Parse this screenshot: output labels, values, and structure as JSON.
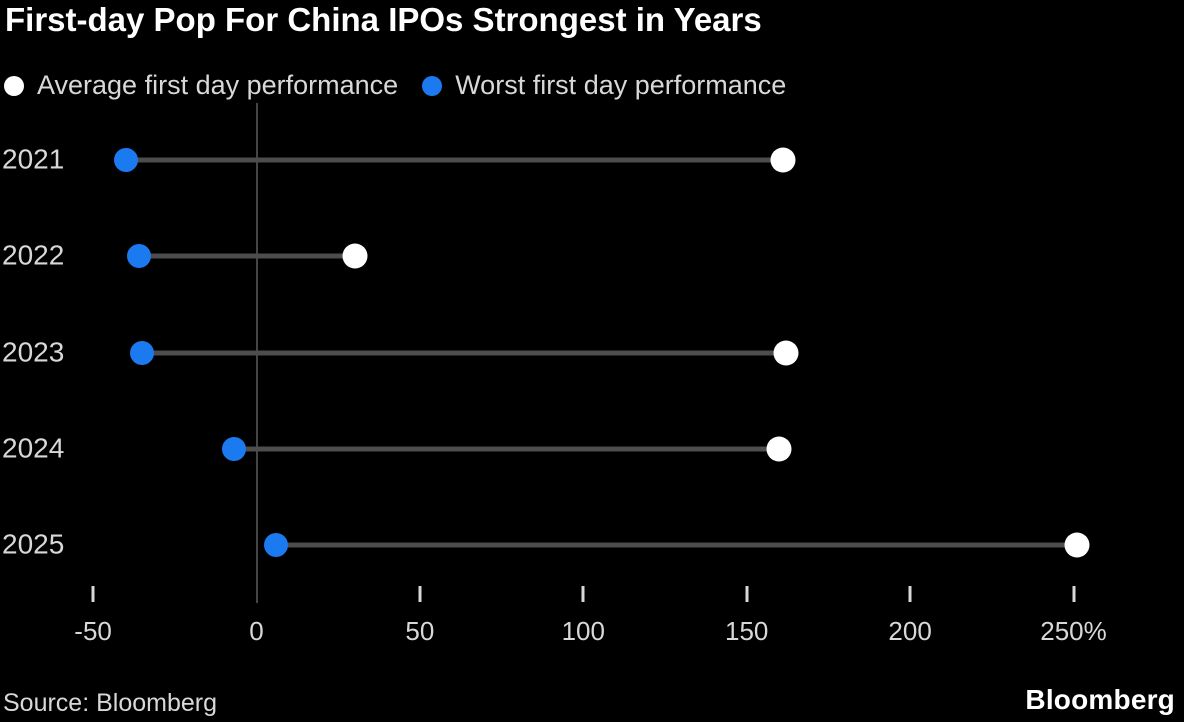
{
  "title": "First-day Pop For China IPOs Strongest in Years",
  "legend": {
    "items": [
      {
        "label": "Average first day performance",
        "color": "#ffffff"
      },
      {
        "label": "Worst first day performance",
        "color": "#1b7af0"
      }
    ]
  },
  "footer": {
    "source": "Source: Bloomberg",
    "logo": "Bloomberg"
  },
  "colors": {
    "background": "#000000",
    "title_text": "#ffffff",
    "text": "#d8d8d8",
    "avg_dot": "#ffffff",
    "worst_dot": "#1b7af0",
    "connector": "#4d4d4d",
    "gridline": "#454545",
    "tick": "#d8d8d8"
  },
  "chart_data": {
    "type": "scatter",
    "subtype": "dumbbell",
    "orientation": "horizontal",
    "title": "First-day Pop For China IPOs Strongest in Years",
    "categories": [
      "2021",
      "2022",
      "2023",
      "2024",
      "2025"
    ],
    "series": [
      {
        "name": "Average first day performance",
        "color": "#ffffff",
        "values": [
          161,
          30,
          162,
          160,
          251
        ]
      },
      {
        "name": "Worst first day performance",
        "color": "#1b7af0",
        "values": [
          -40,
          -36,
          -35,
          -7,
          6
        ]
      }
    ],
    "unit": "%",
    "xlabel": "",
    "ylabel": "",
    "x_ticks": [
      -50,
      0,
      50,
      100,
      150,
      200,
      250
    ],
    "x_tick_labels": [
      "-50",
      "0",
      "50",
      "100",
      "150",
      "200",
      "250%"
    ],
    "xlim": [
      -50,
      250
    ],
    "zero_gridline": true,
    "grid": "zero-line-only",
    "legend_position": "top",
    "source": "Bloomberg"
  }
}
